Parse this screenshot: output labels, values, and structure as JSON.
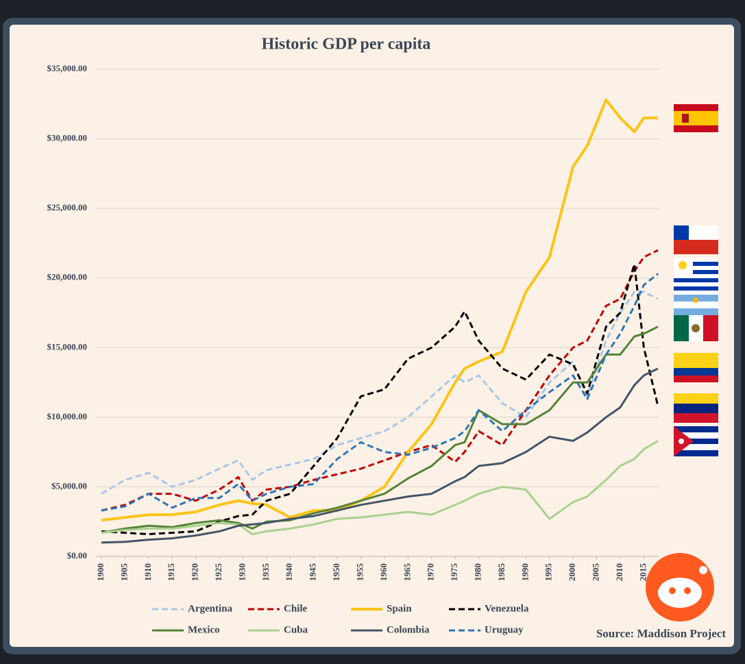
{
  "chart_data": {
    "type": "line",
    "title": "Historic GDP per capita",
    "source": "Source: Maddison Project",
    "x": [
      1900,
      1905,
      1910,
      1915,
      1920,
      1925,
      1929,
      1932,
      1935,
      1940,
      1945,
      1950,
      1955,
      1960,
      1965,
      1970,
      1975,
      1977,
      1980,
      1985,
      1990,
      1995,
      2000,
      2003,
      2007,
      2010,
      2013,
      2015,
      2018
    ],
    "xlim": [
      1900,
      2018
    ],
    "xticks": [
      1900,
      1905,
      1910,
      1915,
      1920,
      1925,
      1930,
      1935,
      1940,
      1945,
      1950,
      1955,
      1960,
      1965,
      1970,
      1975,
      1980,
      1985,
      1990,
      1995,
      2000,
      2005,
      2010,
      2015
    ],
    "ylim": [
      0,
      35000
    ],
    "yticks": [
      {
        "value": 0,
        "label": "$0.00"
      },
      {
        "value": 5000,
        "label": "$5,000.00"
      },
      {
        "value": 10000,
        "label": "$10,000.00"
      },
      {
        "value": 15000,
        "label": "$15,000.00"
      },
      {
        "value": 20000,
        "label": "$20,000.00"
      },
      {
        "value": 25000,
        "label": "$25,000.00"
      },
      {
        "value": 30000,
        "label": "$30,000.00"
      },
      {
        "value": 35000,
        "label": "$35,000.00"
      }
    ],
    "grid": true,
    "legend": "bottom",
    "series": [
      {
        "name": "Argentina",
        "color": "#a9c6e8",
        "dashed": true,
        "values": [
          4500,
          5500,
          6000,
          5000,
          5500,
          6300,
          6900,
          5500,
          6200,
          6600,
          7000,
          8000,
          8500,
          9000,
          10000,
          11500,
          13000,
          12500,
          13000,
          11000,
          10000,
          12500,
          14000,
          11500,
          15500,
          17500,
          19000,
          19000,
          18500
        ]
      },
      {
        "name": "Chile",
        "color": "#c00000",
        "dashed": true,
        "values": [
          3300,
          3700,
          4500,
          4500,
          4000,
          4800,
          5700,
          4000,
          4800,
          5000,
          5500,
          5900,
          6300,
          6900,
          7500,
          8000,
          6800,
          7500,
          9000,
          8000,
          10500,
          13000,
          15000,
          15500,
          18000,
          18500,
          20500,
          21500,
          22000
        ]
      },
      {
        "name": "Spain",
        "color": "#fcc419",
        "dashed": false,
        "values": [
          2600,
          2800,
          3000,
          3000,
          3200,
          3700,
          4000,
          3800,
          3700,
          2800,
          3300,
          3300,
          4000,
          5000,
          7500,
          9500,
          12500,
          13500,
          14000,
          14700,
          19000,
          21500,
          28000,
          29500,
          32800,
          31500,
          30500,
          31500,
          31500
        ]
      },
      {
        "name": "Venezuela",
        "color": "#000000",
        "dashed": true,
        "values": [
          1800,
          1700,
          1600,
          1700,
          1800,
          2500,
          2900,
          3000,
          4000,
          4500,
          6500,
          8500,
          11500,
          12000,
          14200,
          15000,
          16500,
          17600,
          15500,
          13500,
          12700,
          14500,
          13800,
          11700,
          16500,
          17500,
          21000,
          15000,
          10800
        ]
      },
      {
        "name": "Mexico",
        "color": "#548235",
        "dashed": false,
        "values": [
          1700,
          2000,
          2200,
          2100,
          2400,
          2600,
          2400,
          2000,
          2500,
          2600,
          3100,
          3500,
          4000,
          4500,
          5600,
          6500,
          8000,
          8200,
          10500,
          9500,
          9500,
          10500,
          12500,
          12500,
          14500,
          14500,
          15800,
          16000,
          16500
        ]
      },
      {
        "name": "Cuba",
        "color": "#a9d18e",
        "dashed": false,
        "values": [
          1700,
          1900,
          2000,
          2000,
          2200,
          2400,
          2300,
          1600,
          1800,
          2000,
          2300,
          2700,
          2800,
          3000,
          3200,
          3000,
          3700,
          4000,
          4500,
          5000,
          4800,
          2700,
          3900,
          4300,
          5500,
          6500,
          7000,
          7700,
          8300
        ]
      },
      {
        "name": "Colombia",
        "color": "#44546a",
        "dashed": false,
        "values": [
          1000,
          1050,
          1200,
          1300,
          1500,
          1800,
          2200,
          2300,
          2400,
          2700,
          2900,
          3300,
          3700,
          4000,
          4300,
          4500,
          5400,
          5700,
          6500,
          6700,
          7500,
          8600,
          8300,
          8900,
          10000,
          10700,
          12300,
          13000,
          13500
        ]
      },
      {
        "name": "Uruguay",
        "color": "#2e75b6",
        "dashed": true,
        "values": [
          3300,
          3600,
          4500,
          3500,
          4200,
          4200,
          5200,
          4000,
          4500,
          5000,
          5200,
          7000,
          8200,
          7500,
          7300,
          7800,
          8500,
          9000,
          10500,
          9000,
          10500,
          11800,
          13000,
          11300,
          14500,
          16000,
          18000,
          19500,
          20300
        ]
      }
    ]
  }
}
